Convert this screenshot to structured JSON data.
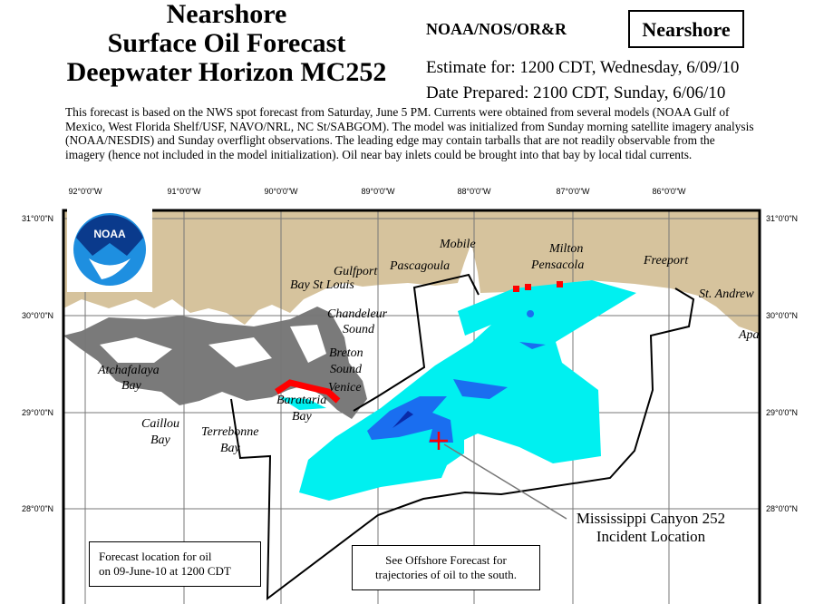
{
  "header": {
    "title_lines": [
      "Nearshore",
      "Surface Oil Forecast",
      "Deepwater Horizon MC252"
    ],
    "agency": "NOAA/NOS/OR&R",
    "badge": "Nearshore",
    "estimate": "Estimate for: 1200 CDT, Wednesday, 6/09/10",
    "prepared": "Date Prepared: 2100 CDT, Sunday, 6/06/10"
  },
  "description": "This forecast is based on the NWS spot forecast from Saturday, June 5 PM. Currents were obtained from several models (NOAA Gulf of Mexico, West Florida Shelf/USF, NAVO/NRL, NC St/SABGOM). The model was initialized from Sunday morning satellite imagery analysis (NOAA/NESDIS) and Sunday overflight observations. The leading edge may contain tarballs that are not readily observable from the imagery (hence not included in the model initialization). Oil near bay inlets could be brought into that bay by local tidal currents.",
  "map": {
    "longitudes": [
      "92°0'0\"W",
      "91°0'0\"W",
      "90°0'0\"W",
      "89°0'0\"W",
      "88°0'0\"W",
      "87°0'0\"W",
      "86°0'0\"W"
    ],
    "latitudes": [
      "31°0'0\"N",
      "30°0'0\"N",
      "29°0'0\"N",
      "28°0'0\"N"
    ],
    "places": [
      "Mobile",
      "Milton",
      "Pensacola",
      "Freeport",
      "Gulfport",
      "Pascagoula",
      "Bay St Louis",
      "St. Andrew",
      "Apa",
      "Chandeleur",
      "Sound",
      "Breton",
      "Sound",
      "Venice",
      "Barataria",
      "Bay",
      "Atchafalaya",
      "Bay",
      "Caillou",
      "Bay",
      "Terrebonne",
      "Bay"
    ],
    "incident": [
      "Mississippi Canyon 252",
      "Incident Location"
    ],
    "legend_box": [
      "Forecast location for oil",
      "on 09-June-10 at 1200 CDT"
    ],
    "offshore_box": [
      "See Offshore Forecast for",
      "trajectories of oil to the south."
    ],
    "logo_text": "NOAA",
    "colors": {
      "land": "#d6c39d",
      "marsh": "#7a7a7a",
      "light_oil": "#00f0f0",
      "medium_oil": "#1a6ef0",
      "heavy_oil": "#0a2aa8",
      "shoreline_oil": "#ff0000",
      "boundary": "#000000"
    }
  }
}
